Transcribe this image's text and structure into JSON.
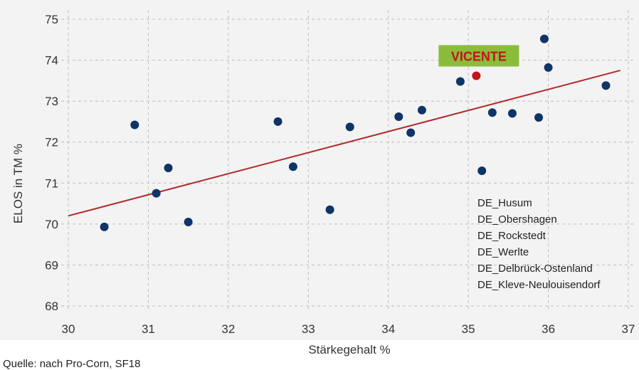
{
  "chart_data": {
    "type": "scatter",
    "title": "",
    "xlabel": "Stärkegehalt %",
    "ylabel": "ELOS in TM %",
    "xlim": [
      30,
      37
    ],
    "ylim": [
      68,
      75
    ],
    "x_ticks": [
      "30",
      "31",
      "32",
      "33",
      "34",
      "35",
      "36",
      "37"
    ],
    "y_ticks": [
      "68",
      "69",
      "70",
      "71",
      "72",
      "73",
      "74",
      "75"
    ],
    "grid": true,
    "points": [
      {
        "x": 30.45,
        "y": 69.93
      },
      {
        "x": 30.83,
        "y": 72.42
      },
      {
        "x": 31.1,
        "y": 70.75
      },
      {
        "x": 31.25,
        "y": 71.37
      },
      {
        "x": 31.5,
        "y": 70.05
      },
      {
        "x": 32.62,
        "y": 72.5
      },
      {
        "x": 32.81,
        "y": 71.4
      },
      {
        "x": 33.27,
        "y": 70.35
      },
      {
        "x": 33.52,
        "y": 72.37
      },
      {
        "x": 34.13,
        "y": 72.62
      },
      {
        "x": 34.28,
        "y": 72.23
      },
      {
        "x": 34.42,
        "y": 72.78
      },
      {
        "x": 34.9,
        "y": 73.48
      },
      {
        "x": 35.17,
        "y": 71.3
      },
      {
        "x": 35.3,
        "y": 72.72
      },
      {
        "x": 35.55,
        "y": 72.7
      },
      {
        "x": 35.88,
        "y": 72.6
      },
      {
        "x": 35.95,
        "y": 74.52
      },
      {
        "x": 36.0,
        "y": 73.82
      },
      {
        "x": 36.72,
        "y": 73.38
      }
    ],
    "highlight": {
      "label": "VICENTE",
      "x": 35.1,
      "y": 73.62
    },
    "trendline": {
      "x": [
        30,
        36.9
      ],
      "y": [
        70.2,
        73.75
      ]
    },
    "legend": [
      "DE_Husum",
      "DE_Obershagen",
      "DE_Rockstedt",
      "DE_Werlte",
      "DE_Delbrück-Ostenland",
      "DE_Kleve-Neulouisendorf"
    ],
    "legend_placement": "bottom-right",
    "colors": {
      "points": "#0d3566",
      "highlight": "#c0151b",
      "trendline": "#b22a2a",
      "callout_bg": "#8bbc3a",
      "plot_bg": "#f3f3f3"
    }
  },
  "source": "Quelle: nach Pro-Corn, SF18"
}
